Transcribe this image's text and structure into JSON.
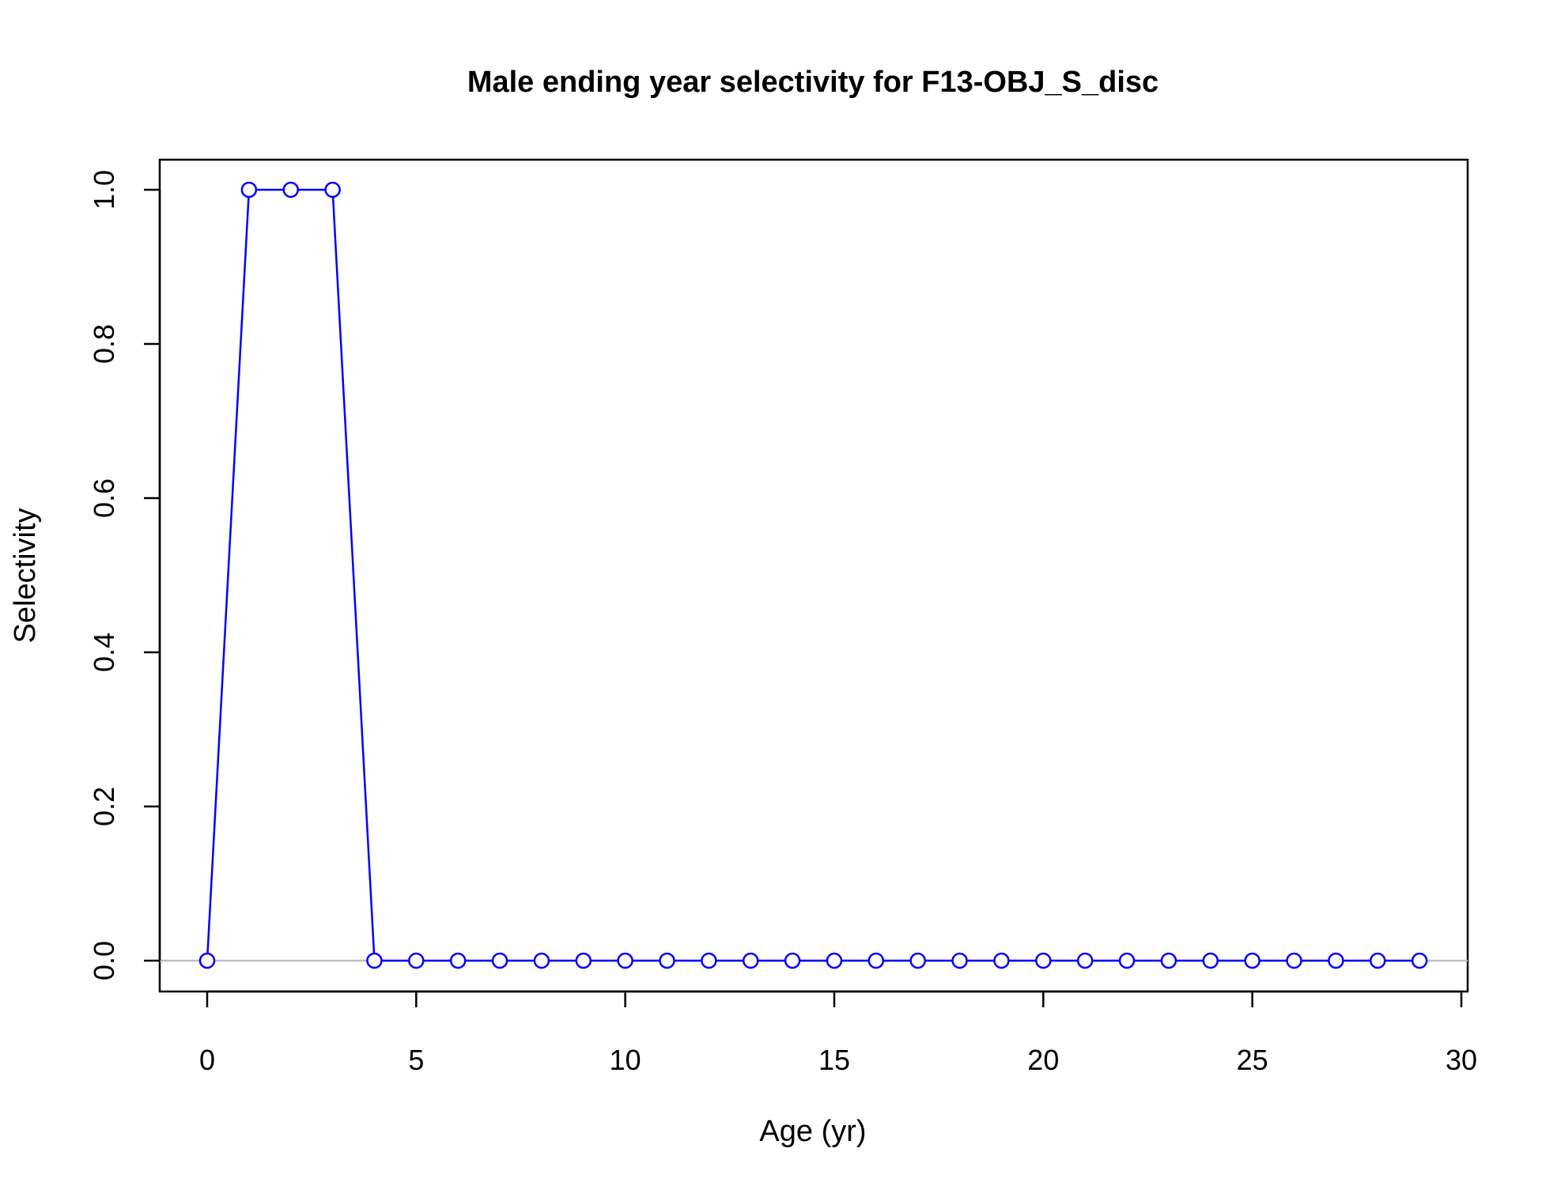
{
  "chart_data": {
    "type": "line",
    "title": "Male ending year selectivity for F13-OBJ_S_disc",
    "xlabel": "Age (yr)",
    "ylabel": "Selectivity",
    "xlim": [
      0,
      30
    ],
    "ylim": [
      0,
      1
    ],
    "x_ticks": [
      "0",
      "5",
      "10",
      "15",
      "20",
      "25",
      "30"
    ],
    "y_ticks": [
      "0.0",
      "0.2",
      "0.4",
      "0.6",
      "0.8",
      "1.0"
    ],
    "reference_line": 0,
    "grid": false,
    "legend": "none",
    "series": [
      {
        "x": [
          0,
          1,
          2,
          3,
          4,
          5,
          6,
          7,
          8,
          9,
          10,
          11,
          12,
          13,
          14,
          15,
          16,
          17,
          18,
          19,
          20,
          21,
          22,
          23,
          24,
          25,
          26,
          27,
          28,
          29
        ],
        "values": [
          0,
          1,
          1,
          1,
          0,
          0,
          0,
          0,
          0,
          0,
          0,
          0,
          0,
          0,
          0,
          0,
          0,
          0,
          0,
          0,
          0,
          0,
          0,
          0,
          0,
          0,
          0,
          0,
          0,
          0
        ]
      }
    ],
    "colors": {
      "series": "#0000ff",
      "reference_line": "#bebebe",
      "axes": "#000000"
    }
  }
}
